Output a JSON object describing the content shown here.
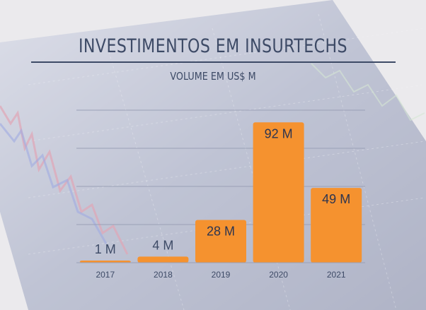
{
  "title": "INVESTIMENTOS EM INSURTECHS",
  "subtitle": "VOLUME EM US$ M",
  "colors": {
    "bar": "#f5922f",
    "text": "#3d4a66",
    "grid": "#9aa0b6"
  },
  "chart_data": {
    "type": "bar",
    "categories": [
      "2017",
      "2018",
      "2019",
      "2020",
      "2021"
    ],
    "values": [
      1,
      4,
      28,
      92,
      49
    ],
    "data_labels": [
      "1 M",
      "4 M",
      "28 M",
      "92 M",
      "49 M"
    ],
    "title": "INVESTIMENTOS EM INSURTECHS",
    "subtitle": "VOLUME EM US$ M",
    "ylim": [
      0,
      100
    ],
    "grid": true,
    "legend": "none"
  }
}
